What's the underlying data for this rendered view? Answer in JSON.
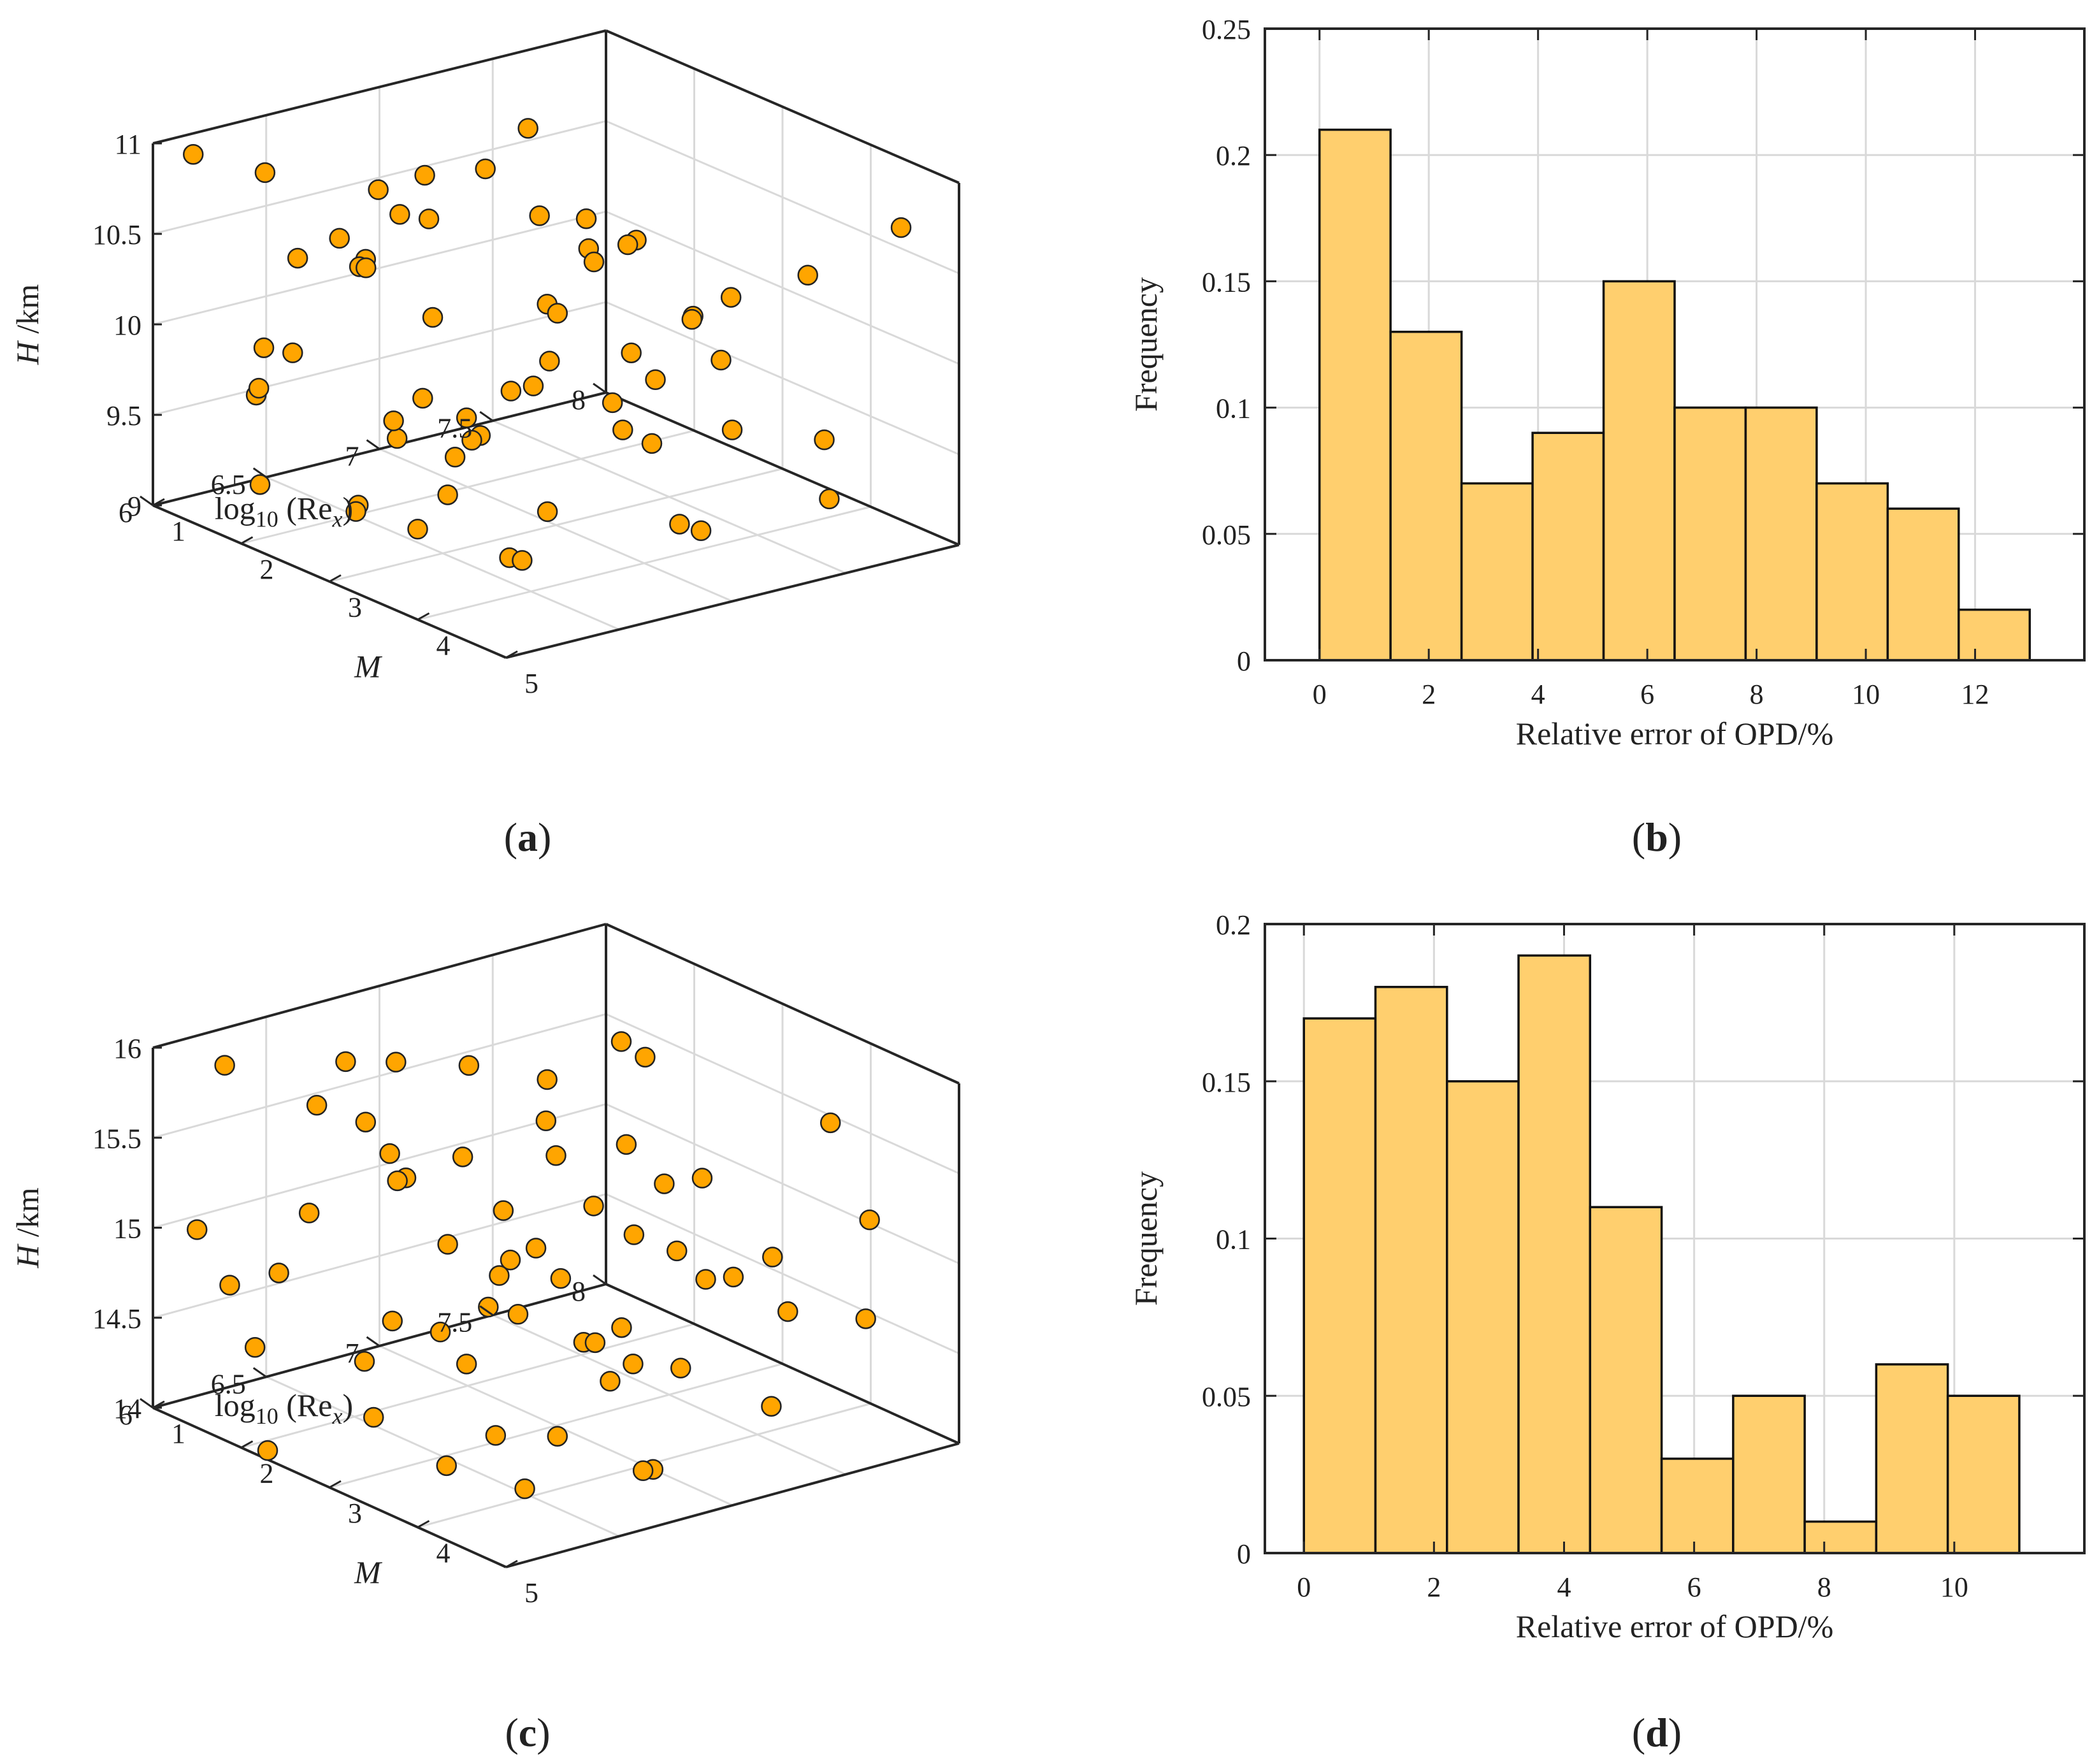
{
  "colors": {
    "marker_fill": "#FFA500",
    "marker_edge": "#222222",
    "bar_fill": "#FFCF6E",
    "bar_edge": "#111111",
    "grid": "#d9d9d9",
    "axis": "#262626"
  },
  "chart_data": [
    {
      "panel": "(a)",
      "type": "scatter3d",
      "xlabel_html": [
        "M"
      ],
      "ylabel_parts": [
        "log",
        "10",
        " (Re",
        "x",
        ")"
      ],
      "zlabel_parts": [
        "H",
        " /km"
      ],
      "xlim": [
        1,
        5
      ],
      "ylim": [
        6,
        8
      ],
      "zlim": [
        9,
        11
      ],
      "xticks": [
        "1",
        "2",
        "3",
        "4",
        "5"
      ],
      "yticks": [
        "6",
        "6.5",
        "7",
        "7.5",
        "8"
      ],
      "zticks": [
        "9",
        "9.5",
        "10",
        "10.5",
        "11"
      ],
      "points": [
        [
          1.2,
          6.1,
          10.95
        ],
        [
          1.5,
          6.3,
          10.85
        ],
        [
          2.0,
          6.7,
          10.6
        ],
        [
          1.4,
          7.5,
          10.7
        ],
        [
          2.6,
          6.2,
          10.75
        ],
        [
          3.1,
          6.4,
          10.9
        ],
        [
          3.6,
          6.9,
          10.85
        ],
        [
          4.3,
          6.5,
          10.6
        ],
        [
          4.8,
          6.1,
          10.4
        ],
        [
          2.3,
          7.2,
          10.5
        ],
        [
          1.8,
          6.6,
          10.3
        ],
        [
          2.9,
          7.0,
          10.2
        ],
        [
          3.4,
          6.3,
          10.45
        ],
        [
          1.1,
          6.9,
          10.1
        ],
        [
          2.5,
          7.8,
          9.8
        ],
        [
          4.1,
          7.3,
          10.05
        ],
        [
          3.8,
          6.1,
          10.15
        ],
        [
          1.6,
          7.9,
          10.0
        ],
        [
          2.2,
          6.0,
          9.9
        ],
        [
          3.0,
          7.6,
          9.95
        ],
        [
          4.6,
          6.8,
          9.85
        ],
        [
          1.3,
          6.5,
          9.75
        ],
        [
          2.7,
          6.4,
          9.7
        ],
        [
          3.5,
          7.1,
          9.6
        ],
        [
          4.0,
          6.0,
          9.5
        ],
        [
          1.9,
          7.4,
          9.55
        ],
        [
          2.4,
          6.9,
          9.4
        ],
        [
          3.2,
          7.7,
          9.35
        ],
        [
          4.4,
          7.0,
          9.3
        ],
        [
          1.7,
          6.2,
          9.2
        ],
        [
          2.8,
          6.6,
          9.25
        ],
        [
          3.9,
          6.5,
          9.15
        ],
        [
          1.2,
          7.0,
          9.1
        ],
        [
          2.1,
          7.6,
          9.3
        ],
        [
          3.3,
          6.0,
          9.45
        ],
        [
          4.7,
          6.3,
          9.65
        ],
        [
          1.5,
          6.8,
          10.6
        ],
        [
          2.6,
          7.3,
          10.35
        ],
        [
          3.7,
          7.5,
          10.25
        ],
        [
          4.2,
          6.7,
          10.8
        ],
        [
          1.0,
          7.2,
          10.45
        ],
        [
          2.0,
          6.1,
          10.05
        ],
        [
          3.0,
          6.9,
          9.8
        ],
        [
          4.5,
          7.6,
          9.6
        ],
        [
          1.8,
          7.8,
          9.45
        ],
        [
          2.3,
          6.4,
          9.15
        ],
        [
          3.5,
          6.6,
          9.05
        ],
        [
          4.9,
          6.9,
          9.4
        ],
        [
          1.4,
          6.3,
          9.6
        ],
        [
          2.9,
          6.2,
          10.65
        ],
        [
          3.3,
          7.2,
          10.55
        ],
        [
          4.1,
          6.2,
          9.95
        ],
        [
          1.6,
          7.1,
          9.05
        ],
        [
          2.5,
          6.8,
          9.55
        ],
        [
          3.8,
          7.8,
          10.3
        ],
        [
          4.6,
          7.9,
          10.7
        ],
        [
          1.1,
          6.6,
          10.2
        ],
        [
          2.2,
          7.0,
          10.8
        ],
        [
          3.1,
          7.4,
          9.7
        ],
        [
          4.3,
          7.7,
          9.2
        ]
      ]
    },
    {
      "panel": "(b)",
      "type": "histogram",
      "xlabel": "Relative error of OPD/%",
      "ylabel": "Frequency",
      "xlim": [
        -1,
        14
      ],
      "ylim": [
        0,
        0.25
      ],
      "xticks": [
        "0",
        "2",
        "4",
        "6",
        "8",
        "10",
        "12"
      ],
      "yticks": [
        "0",
        "0.05",
        "0.1",
        "0.15",
        "0.2",
        "0.25"
      ],
      "bin_edges": [
        0,
        1.3,
        2.6,
        3.9,
        5.2,
        6.5,
        7.8,
        9.1,
        10.4,
        11.7,
        13
      ],
      "values": [
        0.21,
        0.13,
        0.07,
        0.09,
        0.15,
        0.1,
        0.1,
        0.07,
        0.06,
        0.02
      ]
    },
    {
      "panel": "(c)",
      "type": "scatter3d",
      "xlabel_html": [
        "M"
      ],
      "ylabel_parts": [
        "log",
        "10",
        " (Re",
        "x",
        ")"
      ],
      "zlabel_parts": [
        "H",
        " /km"
      ],
      "xlim": [
        1,
        5
      ],
      "ylim": [
        6,
        8
      ],
      "zlim": [
        14,
        16
      ],
      "xticks": [
        "1",
        "2",
        "3",
        "4",
        "5"
      ],
      "yticks": [
        "6",
        "6.5",
        "7",
        "7.5",
        "8"
      ],
      "zticks": [
        "14",
        "14.5",
        "15",
        "15.5",
        "16"
      ],
      "points": [
        [
          1.3,
          6.2,
          15.9
        ],
        [
          1.9,
          6.5,
          15.95
        ],
        [
          2.6,
          6.1,
          16.0
        ],
        [
          3.4,
          6.8,
          15.85
        ],
        [
          4.2,
          6.3,
          15.7
        ],
        [
          4.8,
          6.0,
          15.4
        ],
        [
          1.5,
          7.2,
          15.6
        ],
        [
          2.2,
          7.6,
          15.75
        ],
        [
          3.0,
          7.0,
          15.5
        ],
        [
          3.8,
          6.6,
          15.3
        ],
        [
          1.1,
          6.9,
          15.3
        ],
        [
          2.0,
          6.3,
          15.2
        ],
        [
          2.8,
          6.6,
          15.1
        ],
        [
          3.6,
          7.3,
          15.0
        ],
        [
          4.5,
          7.8,
          15.2
        ],
        [
          1.7,
          7.9,
          15.45
        ],
        [
          2.4,
          7.4,
          14.95
        ],
        [
          3.2,
          6.2,
          14.9
        ],
        [
          4.0,
          6.9,
          14.8
        ],
        [
          1.4,
          6.4,
          14.7
        ],
        [
          2.1,
          7.1,
          14.6
        ],
        [
          2.9,
          7.7,
          14.55
        ],
        [
          3.5,
          6.0,
          14.5
        ],
        [
          4.3,
          6.5,
          14.4
        ],
        [
          1.2,
          7.5,
          14.35
        ],
        [
          2.5,
          6.8,
          14.3
        ],
        [
          3.1,
          7.2,
          14.2
        ],
        [
          3.9,
          7.6,
          14.1
        ],
        [
          4.7,
          6.2,
          14.3
        ],
        [
          1.6,
          6.7,
          14.15
        ],
        [
          2.3,
          6.0,
          14.05
        ],
        [
          3.3,
          6.4,
          14.05
        ],
        [
          4.1,
          7.0,
          14.0
        ],
        [
          1.0,
          7.8,
          14.1
        ],
        [
          1.8,
          7.3,
          14.25
        ],
        [
          2.7,
          7.9,
          14.45
        ],
        [
          3.7,
          6.9,
          14.65
        ],
        [
          4.6,
          7.4,
          14.85
        ],
        [
          1.5,
          6.0,
          15.1
        ],
        [
          2.2,
          6.9,
          15.35
        ],
        [
          3.0,
          6.3,
          15.6
        ],
        [
          3.8,
          7.9,
          15.55
        ],
        [
          4.4,
          7.1,
          15.65
        ],
        [
          1.3,
          7.0,
          15.0
        ],
        [
          2.6,
          7.5,
          14.8
        ],
        [
          3.4,
          7.8,
          14.75
        ],
        [
          4.9,
          6.6,
          14.9
        ],
        [
          1.9,
          6.1,
          14.5
        ],
        [
          2.8,
          7.2,
          14.35
        ],
        [
          3.6,
          6.5,
          14.25
        ],
        [
          4.2,
          7.9,
          14.55
        ],
        [
          1.1,
          6.3,
          14.6
        ],
        [
          2.0,
          7.7,
          15.1
        ],
        [
          2.4,
          6.5,
          15.55
        ],
        [
          3.2,
          7.4,
          15.25
        ],
        [
          4.0,
          6.1,
          15.05
        ],
        [
          1.7,
          6.8,
          15.8
        ],
        [
          2.9,
          7.0,
          15.9
        ],
        [
          3.9,
          7.2,
          14.45
        ],
        [
          4.5,
          6.8,
          14.15
        ]
      ]
    },
    {
      "panel": "(d)",
      "type": "histogram",
      "xlabel": "Relative error of OPD/%",
      "ylabel": "Frequency",
      "xlim": [
        -0.6,
        12
      ],
      "ylim": [
        0,
        0.2
      ],
      "xticks": [
        "0",
        "2",
        "4",
        "6",
        "8",
        "10"
      ],
      "yticks": [
        "0",
        "0.05",
        "0.1",
        "0.15",
        "0.2"
      ],
      "bin_edges": [
        0,
        1.1,
        2.2,
        3.3,
        4.4,
        5.5,
        6.6,
        7.7,
        8.8,
        9.9,
        11
      ],
      "values": [
        0.17,
        0.18,
        0.15,
        0.19,
        0.11,
        0.03,
        0.05,
        0.01,
        0.06,
        0.05
      ]
    }
  ]
}
